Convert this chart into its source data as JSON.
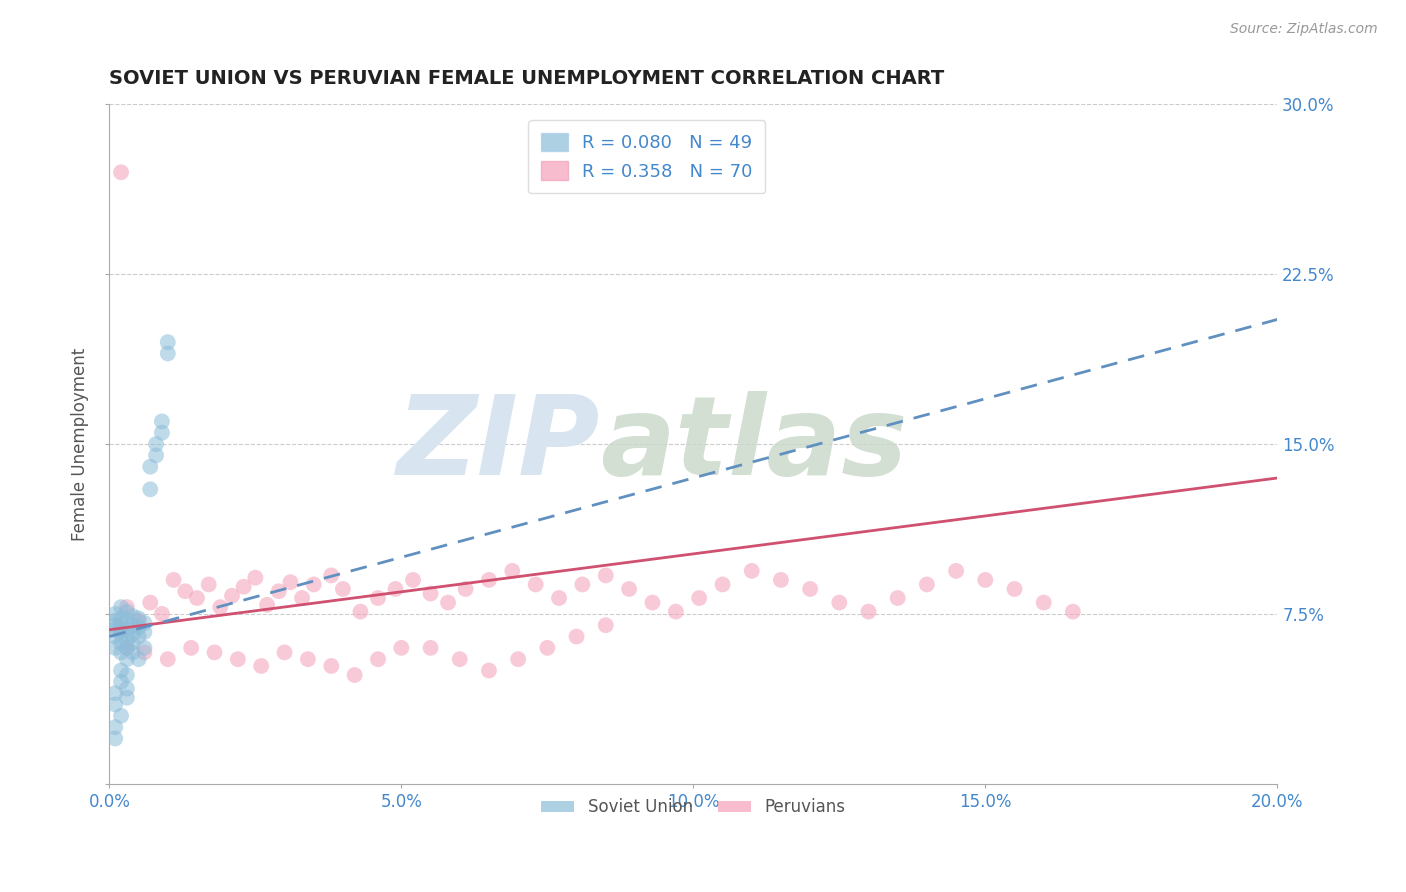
{
  "title": "SOVIET UNION VS PERUVIAN FEMALE UNEMPLOYMENT CORRELATION CHART",
  "source": "Source: ZipAtlas.com",
  "ylabel": "Female Unemployment",
  "xlim": [
    0.0,
    0.2
  ],
  "ylim": [
    0.0,
    0.3
  ],
  "xticks": [
    0.0,
    0.05,
    0.1,
    0.15,
    0.2
  ],
  "xtick_labels": [
    "0.0%",
    "5.0%",
    "10.0%",
    "15.0%",
    "20.0%"
  ],
  "yticks": [
    0.0,
    0.075,
    0.15,
    0.225,
    0.3
  ],
  "ytick_labels": [
    "",
    "7.5%",
    "15.0%",
    "22.5%",
    "30.0%"
  ],
  "legend_entries": [
    {
      "label": "R = 0.080   N = 49"
    },
    {
      "label": "R = 0.358   N = 70"
    }
  ],
  "soviet_color": "#8bbcd8",
  "peruvian_color": "#f4a0b8",
  "soviet_line_color": "#6090c0",
  "peruvian_line_color": "#d05070",
  "grid_color": "#cccccc",
  "background_color": "#ffffff",
  "title_color": "#222222",
  "axis_label_color": "#555555",
  "tick_color": "#4488cc",
  "source_color": "#999999",
  "watermark_color": "#d8e4ef",
  "soviet_R": 0.08,
  "peruvian_R": 0.358,
  "soviet_line_x0": 0.0,
  "soviet_line_y0": 0.065,
  "soviet_line_x1": 0.2,
  "soviet_line_y1": 0.205,
  "peruvian_line_x0": 0.0,
  "peruvian_line_y0": 0.068,
  "peruvian_line_x1": 0.2,
  "peruvian_line_y1": 0.135,
  "soviet_scatter_x": [
    0.001,
    0.001,
    0.001,
    0.001,
    0.001,
    0.001,
    0.001,
    0.001,
    0.001,
    0.001,
    0.002,
    0.002,
    0.002,
    0.002,
    0.002,
    0.002,
    0.002,
    0.002,
    0.002,
    0.002,
    0.003,
    0.003,
    0.003,
    0.003,
    0.003,
    0.003,
    0.003,
    0.003,
    0.003,
    0.004,
    0.004,
    0.004,
    0.004,
    0.004,
    0.005,
    0.005,
    0.005,
    0.005,
    0.006,
    0.006,
    0.006,
    0.007,
    0.007,
    0.008,
    0.008,
    0.009,
    0.009,
    0.01,
    0.01
  ],
  "soviet_scatter_y": [
    0.06,
    0.065,
    0.068,
    0.07,
    0.072,
    0.075,
    0.04,
    0.035,
    0.025,
    0.02,
    0.058,
    0.062,
    0.066,
    0.068,
    0.07,
    0.073,
    0.078,
    0.045,
    0.03,
    0.05,
    0.06,
    0.064,
    0.068,
    0.072,
    0.076,
    0.055,
    0.042,
    0.048,
    0.038,
    0.062,
    0.066,
    0.07,
    0.074,
    0.058,
    0.065,
    0.069,
    0.073,
    0.055,
    0.067,
    0.071,
    0.06,
    0.14,
    0.13,
    0.15,
    0.145,
    0.155,
    0.16,
    0.19,
    0.195
  ],
  "peruvian_scatter_x": [
    0.002,
    0.003,
    0.005,
    0.007,
    0.009,
    0.011,
    0.013,
    0.015,
    0.017,
    0.019,
    0.021,
    0.023,
    0.025,
    0.027,
    0.029,
    0.031,
    0.033,
    0.035,
    0.038,
    0.04,
    0.043,
    0.046,
    0.049,
    0.052,
    0.055,
    0.058,
    0.061,
    0.065,
    0.069,
    0.073,
    0.077,
    0.081,
    0.085,
    0.089,
    0.093,
    0.097,
    0.101,
    0.105,
    0.11,
    0.115,
    0.12,
    0.125,
    0.13,
    0.135,
    0.14,
    0.145,
    0.15,
    0.155,
    0.16,
    0.165,
    0.003,
    0.006,
    0.01,
    0.014,
    0.018,
    0.022,
    0.026,
    0.03,
    0.034,
    0.038,
    0.042,
    0.046,
    0.05,
    0.055,
    0.06,
    0.065,
    0.07,
    0.075,
    0.08,
    0.085
  ],
  "peruvian_scatter_y": [
    0.27,
    0.078,
    0.072,
    0.08,
    0.075,
    0.09,
    0.085,
    0.082,
    0.088,
    0.078,
    0.083,
    0.087,
    0.091,
    0.079,
    0.085,
    0.089,
    0.082,
    0.088,
    0.092,
    0.086,
    0.076,
    0.082,
    0.086,
    0.09,
    0.084,
    0.08,
    0.086,
    0.09,
    0.094,
    0.088,
    0.082,
    0.088,
    0.092,
    0.086,
    0.08,
    0.076,
    0.082,
    0.088,
    0.094,
    0.09,
    0.086,
    0.08,
    0.076,
    0.082,
    0.088,
    0.094,
    0.09,
    0.086,
    0.08,
    0.076,
    0.06,
    0.058,
    0.055,
    0.06,
    0.058,
    0.055,
    0.052,
    0.058,
    0.055,
    0.052,
    0.048,
    0.055,
    0.06,
    0.06,
    0.055,
    0.05,
    0.055,
    0.06,
    0.065,
    0.07
  ]
}
